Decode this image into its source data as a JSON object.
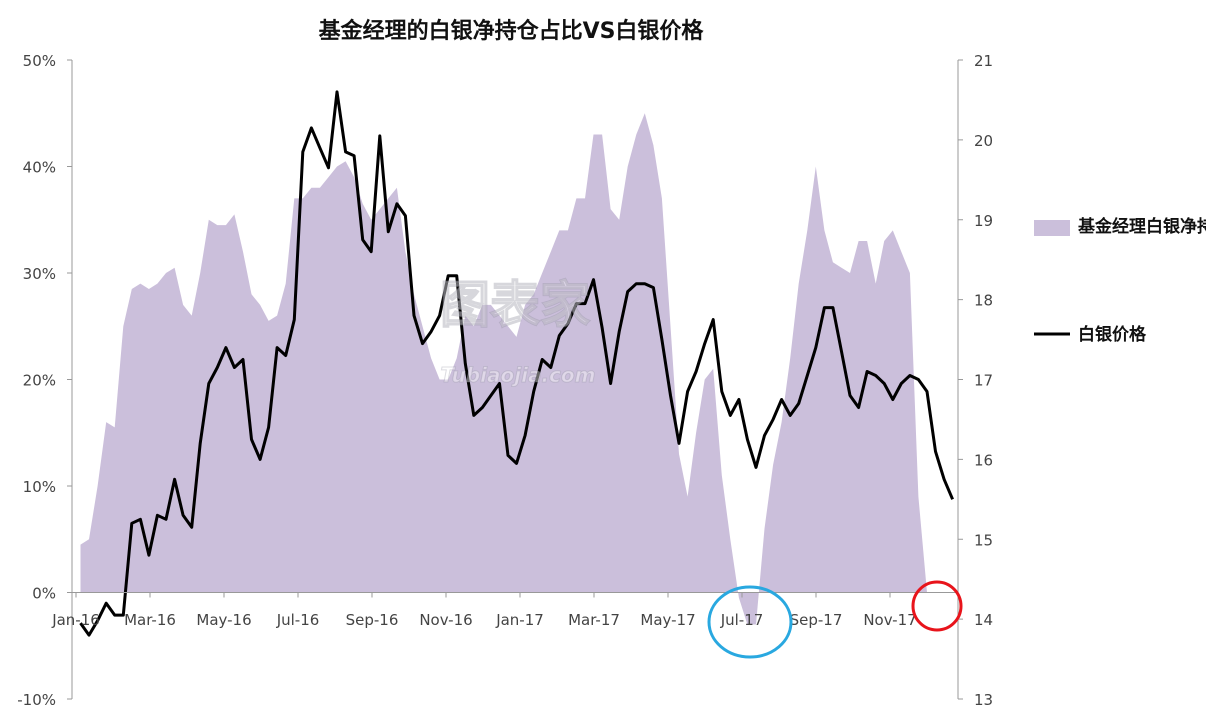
{
  "chart_data": {
    "type": "area",
    "title": "基金经理的白银净持仓占比VS白银价格",
    "xlabel": "",
    "ylabel": "",
    "x_tick_labels": [
      "Jan-16",
      "Mar-16",
      "May-16",
      "Jul-16",
      "Sep-16",
      "Nov-16",
      "Jan-17",
      "Mar-17",
      "May-17",
      "Jul-17",
      "Sep-17",
      "Nov-17"
    ],
    "y_left": {
      "ylim": [
        -0.1,
        0.5
      ],
      "tick_values": [
        -0.1,
        0.0,
        0.1,
        0.2,
        0.3,
        0.4,
        0.5
      ],
      "tick_labels": [
        "-10%",
        "0%",
        "10%",
        "20%",
        "30%",
        "40%",
        "50%"
      ]
    },
    "y_right": {
      "ylim": [
        13,
        21
      ],
      "tick_values": [
        13,
        14,
        15,
        16,
        17,
        18,
        19,
        20,
        21
      ],
      "tick_labels": [
        "13",
        "14",
        "15",
        "16",
        "17",
        "18",
        "19",
        "20",
        "21"
      ]
    },
    "series": [
      {
        "name": "基金经理白银净持仓占比",
        "kind": "area",
        "axis": "left",
        "color": "#cbbfdb",
        "x_week": [
          0,
          1,
          2,
          3,
          4,
          5,
          6,
          7,
          8,
          9,
          10,
          11,
          12,
          13,
          14,
          15,
          16,
          17,
          18,
          19,
          20,
          21,
          22,
          23,
          24,
          25,
          26,
          27,
          28,
          29,
          30,
          31,
          32,
          33,
          34,
          35,
          36,
          37,
          38,
          39,
          40,
          41,
          42,
          43,
          44,
          45,
          46,
          47,
          48,
          49,
          50,
          51,
          52,
          53,
          54,
          55,
          56,
          57,
          58,
          59,
          60,
          61,
          62,
          63,
          64,
          65,
          66,
          67,
          68,
          69,
          70,
          71,
          72,
          73,
          74,
          75,
          76,
          77,
          78,
          79,
          80,
          81,
          82,
          83,
          84,
          85,
          86,
          87,
          88,
          89,
          90,
          91,
          92,
          93,
          94,
          95,
          96,
          97,
          98,
          99,
          100,
          101,
          102,
          103
        ],
        "values": [
          0.045,
          0.05,
          0.1,
          0.16,
          0.155,
          0.25,
          0.285,
          0.29,
          0.285,
          0.29,
          0.3,
          0.305,
          0.27,
          0.26,
          0.3,
          0.35,
          0.345,
          0.345,
          0.355,
          0.32,
          0.28,
          0.27,
          0.255,
          0.26,
          0.29,
          0.37,
          0.37,
          0.38,
          0.38,
          0.39,
          0.4,
          0.405,
          0.39,
          0.365,
          0.35,
          0.36,
          0.37,
          0.38,
          0.32,
          0.28,
          0.25,
          0.22,
          0.2,
          0.2,
          0.22,
          0.26,
          0.25,
          0.27,
          0.27,
          0.26,
          0.25,
          0.24,
          0.27,
          0.28,
          0.3,
          0.32,
          0.34,
          0.34,
          0.37,
          0.37,
          0.43,
          0.43,
          0.36,
          0.35,
          0.4,
          0.43,
          0.45,
          0.42,
          0.37,
          0.25,
          0.13,
          0.09,
          0.15,
          0.2,
          0.21,
          0.11,
          0.05,
          -0.005,
          -0.03,
          -0.03,
          0.06,
          0.12,
          0.16,
          0.22,
          0.29,
          0.34,
          0.4,
          0.34,
          0.31,
          0.305,
          0.3,
          0.33,
          0.33,
          0.29,
          0.33,
          0.34,
          0.32,
          0.3,
          0.09,
          0.0,
          0.0,
          0.0,
          0.0,
          0.0
        ]
      },
      {
        "name": "白银价格",
        "kind": "line",
        "axis": "right",
        "color": "#000000",
        "x_week": [
          0,
          1,
          2,
          3,
          4,
          5,
          6,
          7,
          8,
          9,
          10,
          11,
          12,
          13,
          14,
          15,
          16,
          17,
          18,
          19,
          20,
          21,
          22,
          23,
          24,
          25,
          26,
          27,
          28,
          29,
          30,
          31,
          32,
          33,
          34,
          35,
          36,
          37,
          38,
          39,
          40,
          41,
          42,
          43,
          44,
          45,
          46,
          47,
          48,
          49,
          50,
          51,
          52,
          53,
          54,
          55,
          56,
          57,
          58,
          59,
          60,
          61,
          62,
          63,
          64,
          65,
          66,
          67,
          68,
          69,
          70,
          71,
          72,
          73,
          74,
          75,
          76,
          77,
          78,
          79,
          80,
          81,
          82,
          83,
          84,
          85,
          86,
          87,
          88,
          89,
          90,
          91,
          92,
          93,
          94,
          95,
          96,
          97,
          98,
          99,
          100,
          101,
          102
        ],
        "values": [
          13.95,
          13.8,
          13.98,
          14.2,
          14.05,
          14.05,
          15.2,
          15.25,
          14.8,
          15.3,
          15.25,
          15.75,
          15.3,
          15.15,
          16.2,
          16.95,
          17.15,
          17.4,
          17.15,
          17.25,
          16.25,
          16.0,
          16.4,
          17.4,
          17.3,
          17.75,
          19.85,
          20.15,
          19.9,
          19.65,
          20.6,
          19.85,
          19.8,
          18.75,
          18.6,
          20.05,
          18.85,
          19.2,
          19.05,
          17.8,
          17.45,
          17.6,
          17.8,
          18.3,
          18.3,
          17.2,
          16.55,
          16.65,
          16.8,
          16.95,
          16.05,
          15.95,
          16.3,
          16.85,
          17.25,
          17.15,
          17.55,
          17.7,
          17.95,
          17.95,
          18.25,
          17.65,
          16.95,
          17.6,
          18.1,
          18.2,
          18.2,
          18.15,
          17.5,
          16.8,
          16.2,
          16.85,
          17.1,
          17.45,
          17.75,
          16.85,
          16.55,
          16.75,
          16.25,
          15.9,
          16.3,
          16.5,
          16.75,
          16.55,
          16.7,
          17.05,
          17.4,
          17.9,
          17.9,
          17.35,
          16.8,
          16.65,
          17.1,
          17.05,
          16.95,
          16.75,
          16.95,
          17.05,
          17.0,
          16.85,
          16.1,
          15.75,
          15.5
        ]
      }
    ],
    "legend": {
      "placement": "right",
      "entries": [
        "基金经理白银净持仓占比",
        "白银价格"
      ]
    },
    "grid": false,
    "annotations": [
      {
        "kind": "ellipse-outline",
        "color": "#29a8e0",
        "around": "Jul-17"
      },
      {
        "kind": "circle-outline",
        "color": "#e8141b",
        "around": "latest"
      }
    ],
    "watermark": "图表家 Tubiaojia.com"
  }
}
